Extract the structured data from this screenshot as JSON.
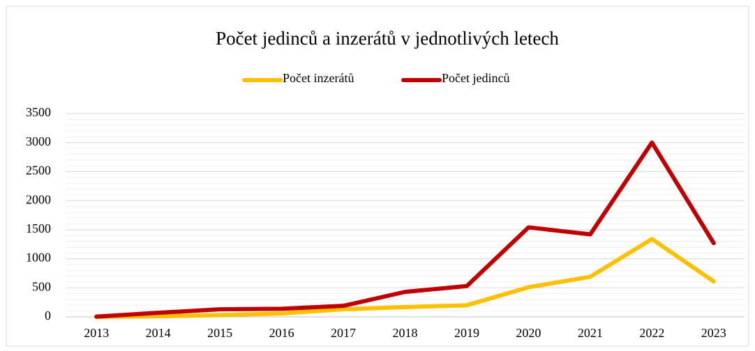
{
  "chart_data": {
    "type": "line",
    "title": "Počet jedinců a inzerátů v jednotlivých letech",
    "categories": [
      "2013",
      "2014",
      "2015",
      "2016",
      "2017",
      "2018",
      "2019",
      "2020",
      "2021",
      "2022",
      "2023"
    ],
    "series": [
      {
        "name": "Počet inzerátů",
        "color": "#ffc000",
        "values": [
          0,
          10,
          30,
          60,
          130,
          170,
          200,
          510,
          690,
          1340,
          610
        ]
      },
      {
        "name": "Počet jedinců",
        "color": "#c00000",
        "values": [
          5,
          70,
          130,
          140,
          190,
          430,
          530,
          1540,
          1420,
          3000,
          1270
        ]
      }
    ],
    "ylim": [
      0,
      3500
    ],
    "yticks": [
      0,
      500,
      1000,
      1500,
      2000,
      2500,
      3000,
      3500
    ],
    "grid": true,
    "minor_grid_step": 100,
    "legend": "top"
  }
}
